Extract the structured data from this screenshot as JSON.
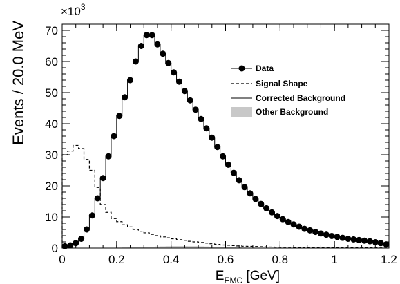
{
  "chart_data": {
    "type": "scatter",
    "title": "",
    "xlabel_main": "E",
    "xlabel_sub": "EMC",
    "xlabel_unit": " [GeV]",
    "ylabel": "Events / 20.0 MeV",
    "y_multiplier_base": "×10",
    "y_multiplier_exp": "3",
    "xlim": [
      0,
      1.2
    ],
    "ylim": [
      0,
      72
    ],
    "x_ticks": [
      0,
      0.2,
      0.4,
      0.6,
      0.8,
      1,
      1.2
    ],
    "x_tick_labels": [
      "0",
      "0.2",
      "0.4",
      "0.6",
      "0.8",
      "1",
      "1.2"
    ],
    "y_ticks": [
      0,
      10,
      20,
      30,
      40,
      50,
      60,
      70
    ],
    "y_tick_labels": [
      "0",
      "10",
      "20",
      "30",
      "40",
      "50",
      "60",
      "70"
    ],
    "grid": false,
    "legend_position": "right",
    "bin_edges": [
      0,
      0.02,
      0.04,
      0.06,
      0.08,
      0.1,
      0.12,
      0.14,
      0.16,
      0.18,
      0.2,
      0.22,
      0.24,
      0.26,
      0.28,
      0.3,
      0.32,
      0.34,
      0.36,
      0.38,
      0.4,
      0.42,
      0.44,
      0.46,
      0.48,
      0.5,
      0.52,
      0.54,
      0.56,
      0.58,
      0.6,
      0.62,
      0.64,
      0.66,
      0.68,
      0.7,
      0.72,
      0.74,
      0.76,
      0.78,
      0.8,
      0.82,
      0.84,
      0.86,
      0.88,
      0.9,
      0.92,
      0.94,
      0.96,
      0.98,
      1.0,
      1.02,
      1.04,
      1.06,
      1.08,
      1.1,
      1.12,
      1.14,
      1.16,
      1.18,
      1.2
    ],
    "series": [
      {
        "name": "Data",
        "style": "markers",
        "color": "#000000",
        "x": [
          0.01,
          0.03,
          0.05,
          0.07,
          0.09,
          0.11,
          0.13,
          0.15,
          0.17,
          0.19,
          0.21,
          0.23,
          0.25,
          0.27,
          0.29,
          0.31,
          0.33,
          0.35,
          0.37,
          0.39,
          0.41,
          0.43,
          0.45,
          0.47,
          0.49,
          0.51,
          0.53,
          0.55,
          0.57,
          0.59,
          0.61,
          0.63,
          0.65,
          0.67,
          0.69,
          0.71,
          0.73,
          0.75,
          0.77,
          0.79,
          0.81,
          0.83,
          0.85,
          0.87,
          0.89,
          0.91,
          0.93,
          0.95,
          0.97,
          0.99,
          1.01,
          1.03,
          1.05,
          1.07,
          1.09,
          1.11,
          1.13,
          1.15,
          1.17,
          1.19
        ],
        "values": [
          0.6,
          0.9,
          1.6,
          3.0,
          6.0,
          10.5,
          16.0,
          22.5,
          29.5,
          36.0,
          42.5,
          48.5,
          54.0,
          60.0,
          65.0,
          68.5,
          68.5,
          65.5,
          62.5,
          59.5,
          56.5,
          53.5,
          50.5,
          47.5,
          44.5,
          41.5,
          38.5,
          35.5,
          32.5,
          29.5,
          26.8,
          24.2,
          21.8,
          19.6,
          17.6,
          15.8,
          14.2,
          12.8,
          11.5,
          10.3,
          9.3,
          8.4,
          7.6,
          6.9,
          6.2,
          5.7,
          5.2,
          4.7,
          4.3,
          3.9,
          3.6,
          3.3,
          3.0,
          2.8,
          2.6,
          2.4,
          2.2,
          1.9,
          1.6,
          1.2
        ]
      },
      {
        "name": "Signal Shape",
        "style": "dashed-step",
        "color": "#000000",
        "values": [
          30.0,
          31.2,
          33.0,
          32.0,
          28.5,
          25.0,
          19.5,
          14.0,
          11.5,
          9.5,
          8.5,
          7.5,
          6.8,
          6.0,
          5.4,
          4.9,
          4.4,
          4.0,
          3.6,
          3.3,
          3.0,
          2.7,
          2.5,
          2.2,
          2.0,
          1.8,
          1.6,
          1.4,
          1.2,
          1.0,
          0.9,
          0.8,
          0.7,
          0.6,
          0.55,
          0.5,
          0.45,
          0.4,
          0.35,
          0.3,
          0.28,
          0.26,
          0.24,
          0.22,
          0.2,
          0.18,
          0.16,
          0.15,
          0.14,
          0.13,
          0.12,
          0.11,
          0.1,
          0.1,
          0.09,
          0.09,
          0.08,
          0.08,
          0.07,
          0.07
        ]
      },
      {
        "name": "Corrected Background",
        "style": "solid-step",
        "color": "#000000",
        "values": [
          0.6,
          0.9,
          1.6,
          3.0,
          6.0,
          10.5,
          16.0,
          22.5,
          29.5,
          36.0,
          42.5,
          48.5,
          54.0,
          60.0,
          65.0,
          68.5,
          68.5,
          65.5,
          62.5,
          59.5,
          56.5,
          53.5,
          50.5,
          47.5,
          44.5,
          41.5,
          38.5,
          35.5,
          32.5,
          29.5,
          26.8,
          24.2,
          21.8,
          19.6,
          17.6,
          15.8,
          14.2,
          12.8,
          11.5,
          10.3,
          9.3,
          8.4,
          7.6,
          6.9,
          6.2,
          5.7,
          5.2,
          4.7,
          4.3,
          3.9,
          3.6,
          3.3,
          3.0,
          2.8,
          2.6,
          2.4,
          2.2,
          1.9,
          1.6,
          1.2
        ]
      },
      {
        "name": "Other Background",
        "style": "filled-step",
        "color": "#c8c8c8",
        "values": [
          0,
          0,
          0,
          0,
          0,
          0,
          0,
          0,
          0,
          0.1,
          0.15,
          0.2,
          0.25,
          0.3,
          0.35,
          0.4,
          0.45,
          0.5,
          0.55,
          0.6,
          0.65,
          0.65,
          0.65,
          0.6,
          0.6,
          0.55,
          0.5,
          0.45,
          0.4,
          0.35,
          0.3,
          0.25,
          0.2,
          0.15,
          0.1,
          0.08,
          0.06,
          0.05,
          0.04,
          0.03,
          0.02,
          0.02,
          0.01,
          0.01,
          0,
          0,
          0,
          0,
          0,
          0,
          0,
          0,
          0,
          0,
          0,
          0,
          0,
          0,
          0,
          0
        ]
      }
    ]
  }
}
